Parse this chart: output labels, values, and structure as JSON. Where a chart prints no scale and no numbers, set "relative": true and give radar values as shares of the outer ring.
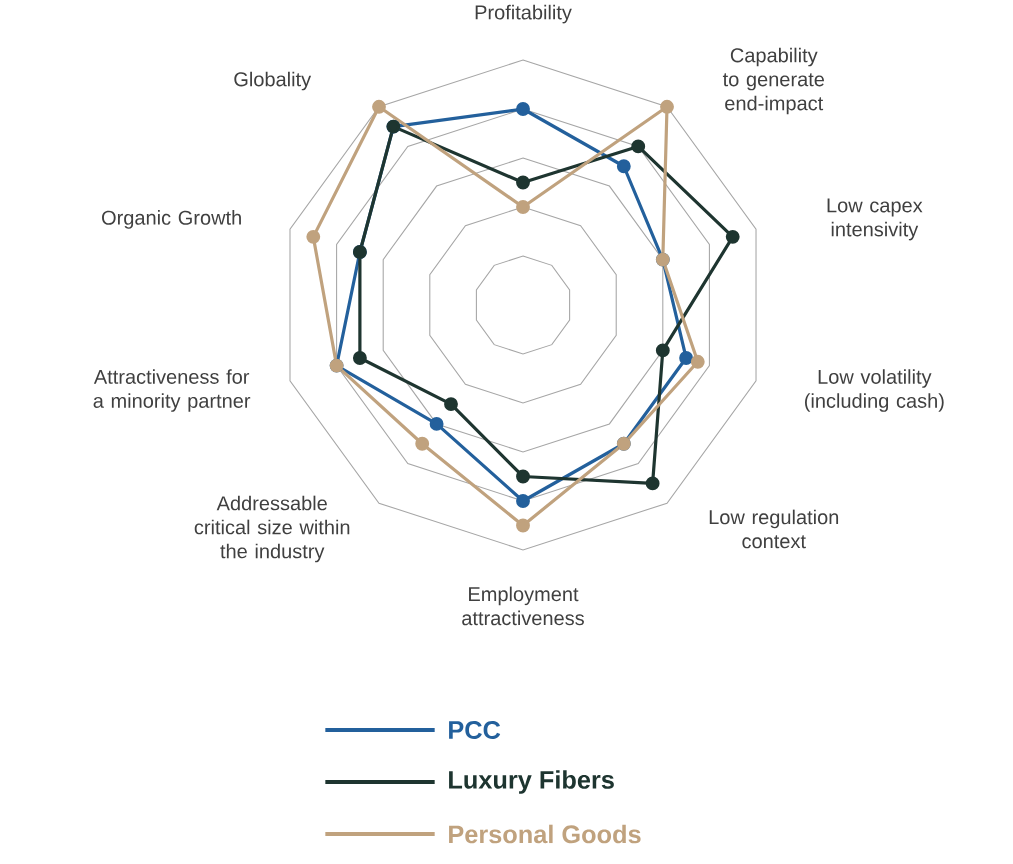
{
  "chart_data": {
    "type": "radar",
    "relative": true,
    "grid": true,
    "legend": "bottom",
    "marker": "circle",
    "categories": [
      "Profitability",
      "Capability to generate end-impact",
      "Low capex intensivity",
      "Low volatility (including cash)",
      "Low regulation context",
      "Employment attractiveness",
      "Addressable critical size within the industry",
      "Attractiveness for a minority partner",
      "Organic Growth",
      "Globality"
    ],
    "series": [
      {
        "name": "PCC",
        "color": "#23609c",
        "values": [
          0.8,
          0.7,
          0.6,
          0.7,
          0.7,
          0.8,
          0.6,
          0.8,
          0.7,
          0.9
        ]
      },
      {
        "name": "Luxury Fibers",
        "color": "#1e3530",
        "values": [
          0.5,
          0.8,
          0.9,
          0.6,
          0.9,
          0.7,
          0.5,
          0.7,
          0.7,
          0.9
        ]
      },
      {
        "name": "Personal Goods",
        "color": "#c0a27e",
        "values": [
          0.4,
          1.0,
          0.6,
          0.75,
          0.7,
          0.9,
          0.7,
          0.8,
          0.9,
          1.0
        ]
      }
    ]
  }
}
